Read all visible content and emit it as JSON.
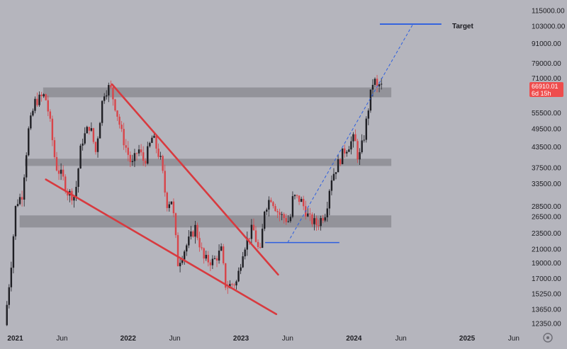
{
  "chart_data": {
    "type": "candlestick",
    "title": "",
    "y_scale": "log",
    "ylim": [
      11800,
      118000
    ],
    "xlim": [
      "2020-12-01",
      "2025-07-01"
    ],
    "y_ticks": [
      "115000.00",
      "103000.00",
      "91000.00",
      "79000.00",
      "71000.00",
      "55500.00",
      "49500.00",
      "43500.00",
      "37500.00",
      "33500.00",
      "28500.00",
      "26500.00",
      "23500.00",
      "21000.00",
      "19000.00",
      "17000.00",
      "15250.00",
      "13650.00",
      "12350.00"
    ],
    "x_ticks": [
      {
        "date": "2021-01-01",
        "label": "2021",
        "year": true
      },
      {
        "date": "2021-06-01",
        "label": "Jun",
        "year": false
      },
      {
        "date": "2022-01-01",
        "label": "2022",
        "year": true
      },
      {
        "date": "2022-06-01",
        "label": "Jun",
        "year": false
      },
      {
        "date": "2023-01-01",
        "label": "2023",
        "year": true
      },
      {
        "date": "2023-06-01",
        "label": "Jun",
        "year": false
      },
      {
        "date": "2024-01-01",
        "label": "2024",
        "year": true
      },
      {
        "date": "2024-06-01",
        "label": "Jun",
        "year": false
      },
      {
        "date": "2025-01-01",
        "label": "2025",
        "year": true
      },
      {
        "date": "2025-06-01",
        "label": "Jun",
        "year": false
      }
    ],
    "price_path": [
      [
        "2020-12-05",
        12200
      ],
      [
        "2020-12-25",
        18500
      ],
      [
        "2021-01-10",
        29000
      ],
      [
        "2021-01-30",
        31000
      ],
      [
        "2021-02-20",
        49000
      ],
      [
        "2021-03-13",
        60000
      ],
      [
        "2021-04-14",
        63000
      ],
      [
        "2021-04-28",
        54000
      ],
      [
        "2021-05-19",
        38000
      ],
      [
        "2021-06-10",
        35000
      ],
      [
        "2021-06-26",
        31500
      ],
      [
        "2021-07-20",
        30500
      ],
      [
        "2021-08-10",
        45000
      ],
      [
        "2021-09-06",
        51000
      ],
      [
        "2021-09-25",
        42000
      ],
      [
        "2021-10-20",
        64000
      ],
      [
        "2021-11-10",
        67000
      ],
      [
        "2021-11-30",
        57000
      ],
      [
        "2021-12-20",
        47000
      ],
      [
        "2022-01-20",
        38000
      ],
      [
        "2022-02-10",
        43000
      ],
      [
        "2022-03-01",
        39000
      ],
      [
        "2022-03-28",
        47000
      ],
      [
        "2022-04-25",
        39000
      ],
      [
        "2022-05-12",
        29000
      ],
      [
        "2022-05-30",
        30000
      ],
      [
        "2022-06-18",
        19000
      ],
      [
        "2022-07-10",
        21000
      ],
      [
        "2022-08-13",
        24500
      ],
      [
        "2022-09-10",
        19500
      ],
      [
        "2022-10-10",
        19200
      ],
      [
        "2022-11-05",
        20800
      ],
      [
        "2022-11-20",
        16000
      ],
      [
        "2022-12-25",
        16600
      ],
      [
        "2023-01-15",
        21000
      ],
      [
        "2023-02-15",
        24500
      ],
      [
        "2023-03-10",
        20000
      ],
      [
        "2023-03-25",
        28000
      ],
      [
        "2023-04-14",
        30500
      ],
      [
        "2023-05-10",
        27000
      ],
      [
        "2023-06-15",
        25500
      ],
      [
        "2023-06-25",
        30500
      ],
      [
        "2023-07-20",
        29800
      ],
      [
        "2023-08-17",
        26000
      ],
      [
        "2023-09-11",
        25000
      ],
      [
        "2023-10-10",
        27500
      ],
      [
        "2023-10-25",
        34500
      ],
      [
        "2023-12-05",
        42000
      ],
      [
        "2024-01-10",
        46500
      ],
      [
        "2024-01-23",
        39500
      ],
      [
        "2024-02-10",
        47000
      ],
      [
        "2024-02-28",
        61000
      ],
      [
        "2024-03-14",
        73000
      ],
      [
        "2024-03-20",
        62500
      ],
      [
        "2024-03-26",
        69500
      ],
      [
        "2024-04-01",
        66910
      ]
    ],
    "zones": [
      {
        "low": 62000,
        "high": 66500,
        "start": "2021-04-01",
        "end": "2024-05-01"
      },
      {
        "low": 38000,
        "high": 40000,
        "start": "2021-02-01",
        "end": "2024-05-01"
      },
      {
        "low": 24500,
        "high": 26700,
        "start": "2021-01-15",
        "end": "2024-05-01"
      }
    ],
    "wedge_lines": [
      {
        "x1": "2021-11-10",
        "y1": 68000,
        "x2": "2023-05-01",
        "y2": 17500
      },
      {
        "x1": "2021-04-10",
        "y1": 34500,
        "x2": "2023-04-25",
        "y2": 13200
      }
    ],
    "support_line": {
      "start": "2023-03-20",
      "end": "2023-11-15",
      "y": 22000
    },
    "target_line": {
      "start": "2024-03-25",
      "end": "2024-10-10",
      "y": 104500
    },
    "projection_line": {
      "x1": "2023-06-01",
      "y1": 22000,
      "x2": "2024-07-10",
      "y2": 104500
    },
    "target_label": "Target",
    "current_price": "66910.01",
    "countdown": "6d 15h",
    "colors": {
      "background": "#b5b5bd",
      "up": "#1f1f24",
      "down": "#d8454a",
      "zone": "#8d8d94",
      "wedge": "#d83a3f",
      "blue": "#2d5fe0",
      "badge": "#ef4d4d"
    }
  }
}
